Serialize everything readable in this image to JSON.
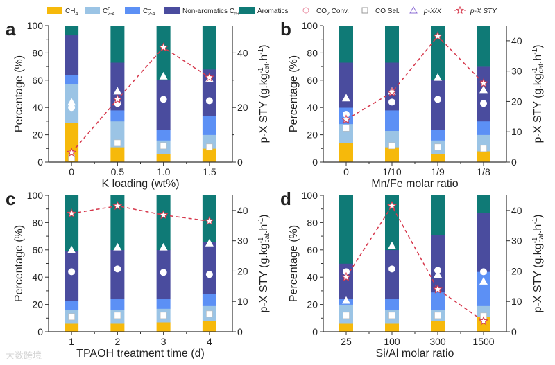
{
  "chart_data": {
    "type": "bar",
    "subtype": "stacked bar with scatter overlays and secondary-axis line",
    "legend": {
      "placement": "top",
      "items": [
        {
          "key": "ch4",
          "label": "CH",
          "sub": "4",
          "sup": "",
          "color": "#F6B90B",
          "kind": "bar"
        },
        {
          "key": "c24p",
          "label": "C",
          "sub": "2-4",
          "sup": "0",
          "color": "#9BC4E5",
          "kind": "bar"
        },
        {
          "key": "c24o",
          "label": "C",
          "sub": "2-4",
          "sup": "=",
          "color": "#5C90F5",
          "kind": "bar"
        },
        {
          "key": "nonarom",
          "label": "Non-aromatics C",
          "sub": "5+",
          "sup": "",
          "color": "#4A4C9E",
          "kind": "bar"
        },
        {
          "key": "arom",
          "label": "Aromatics",
          "sub": "",
          "sup": "",
          "color": "#0F7A76",
          "kind": "bar"
        },
        {
          "key": "co2",
          "label": "CO",
          "sub": "2",
          "sup": "",
          "tail": " Conv.",
          "color": "#E88BA0",
          "kind": "circle"
        },
        {
          "key": "cosel",
          "label": "CO Sel.",
          "sub": "",
          "sup": "",
          "color": "#999999",
          "kind": "square"
        },
        {
          "key": "pxx",
          "label": "p-X/X",
          "sub": "",
          "sup": "",
          "color": "#8E6FD6",
          "kind": "triangle"
        },
        {
          "key": "sty",
          "label": "p-X STY",
          "sub": "",
          "sup": "",
          "color": "#D6384C",
          "kind": "star-line"
        }
      ]
    },
    "ylabel_left": "Percentage (%)",
    "ylabel_right": {
      "main": "p-X STY (g.kg",
      "sub": "cat",
      "sup": "-1",
      "mid": ".h",
      "sup2": "-1",
      "end": ")"
    },
    "ylim_left": [
      0,
      100
    ],
    "yticks_left": [
      0,
      20,
      40,
      60,
      80,
      100
    ],
    "panels": [
      {
        "label": "a",
        "xlabel": "K loading (wt%)",
        "categories": [
          "0",
          "0.5",
          "1.0",
          "1.5"
        ],
        "ylim_right": [
          0,
          50
        ],
        "yticks_right": [
          0,
          20,
          40
        ],
        "stacks": {
          "ch4": [
            29,
            11,
            6,
            10
          ],
          "c24p": [
            28,
            19,
            10,
            10
          ],
          "c24o": [
            7,
            8,
            8,
            14
          ],
          "nonarom": [
            29,
            35,
            36,
            34
          ],
          "arom": [
            7,
            27,
            40,
            32
          ]
        },
        "co2": [
          40,
          43,
          46,
          45
        ],
        "cosel": [
          3,
          14,
          12,
          11
        ],
        "pxx": [
          44,
          52,
          63,
          61
        ],
        "sty": [
          3.5,
          23,
          42,
          31
        ]
      },
      {
        "label": "b",
        "xlabel": "Mn/Fe molar ratio",
        "categories": [
          "0",
          "1/10",
          "1/9",
          "1/8"
        ],
        "ylim_right": [
          0,
          45
        ],
        "yticks_right": [
          0,
          10,
          20,
          30,
          40
        ],
        "stacks": {
          "ch4": [
            14,
            11,
            6,
            8
          ],
          "c24p": [
            14,
            12,
            10,
            12
          ],
          "c24o": [
            12,
            15,
            8,
            10
          ],
          "nonarom": [
            33,
            35,
            36,
            40
          ],
          "arom": [
            27,
            27,
            40,
            30
          ]
        },
        "co2": [
          35,
          44,
          46,
          43
        ],
        "cosel": [
          25,
          12,
          11,
          10
        ],
        "pxx": [
          47,
          52,
          62,
          53
        ],
        "sty": [
          14,
          23,
          41.5,
          26
        ]
      },
      {
        "label": "c",
        "xlabel": "TPAOH treatment time (d)",
        "categories": [
          "1",
          "2",
          "3",
          "4"
        ],
        "ylim_right": [
          0,
          45
        ],
        "yticks_right": [
          0,
          10,
          20,
          30,
          40
        ],
        "stacks": {
          "ch4": [
            6,
            6,
            7,
            8
          ],
          "c24p": [
            10,
            10,
            10,
            11
          ],
          "c24o": [
            7,
            8,
            7,
            9
          ],
          "nonarom": [
            36,
            36,
            36,
            38
          ],
          "arom": [
            41,
            40,
            40,
            34
          ]
        },
        "co2": [
          44,
          46,
          43.5,
          42
        ],
        "cosel": [
          11,
          12,
          12,
          13
        ],
        "pxx": [
          60,
          62,
          62,
          65
        ],
        "sty": [
          39,
          41.5,
          38.5,
          36.5
        ]
      },
      {
        "label": "d",
        "xlabel": "Si/Al molar ratio",
        "categories": [
          "25",
          "100",
          "300",
          "1500"
        ],
        "ylim_right": [
          0,
          45
        ],
        "yticks_right": [
          0,
          10,
          20,
          30,
          40
        ],
        "stacks": {
          "ch4": [
            6,
            6,
            8,
            11
          ],
          "c24p": [
            14,
            10,
            8,
            8
          ],
          "c24o": [
            4,
            8,
            13,
            25
          ],
          "nonarom": [
            26,
            36,
            42,
            43
          ],
          "arom": [
            50,
            40,
            29,
            13
          ]
        },
        "co2": [
          44,
          46,
          45,
          44
        ],
        "cosel": [
          12,
          12,
          12,
          11.5
        ],
        "pxx": [
          23,
          63,
          42,
          37
        ],
        "sty": [
          18,
          41.5,
          14,
          3.5
        ]
      }
    ]
  },
  "watermark": "大数跨境"
}
